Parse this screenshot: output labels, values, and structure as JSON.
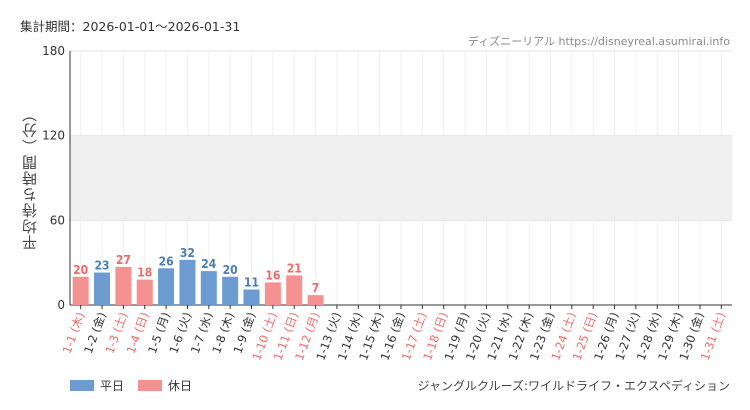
{
  "header": {
    "period_label": "集計期間：2026-01-01〜2026-01-31",
    "credit_site": "ディズニーリアル",
    "credit_url": "https://disneyreal.asumirai.info"
  },
  "legend": {
    "weekday_label": "平日",
    "holiday_label": "休日"
  },
  "footer": {
    "attraction_name": "ジャングルクルーズ:ワイルドライフ・エクスペディション"
  },
  "colors": {
    "weekday": "#6b9bd1",
    "holiday": "#f59191",
    "band": "#f0f0f0",
    "grid": "#e6e6e6",
    "weekday_text": "#4a7fb5",
    "holiday_text": "#ee6b6b",
    "axis": "#333333"
  },
  "chart_data": {
    "type": "bar",
    "ylabel": "平均待ち時間（分）",
    "ylim": [
      0,
      180
    ],
    "yticks": [
      0,
      60,
      120,
      180
    ],
    "shaded_band": [
      60,
      120
    ],
    "categories": [
      "1-1 (木)",
      "1-2 (金)",
      "1-3 (土)",
      "1-4 (日)",
      "1-5 (月)",
      "1-6 (火)",
      "1-7 (水)",
      "1-8 (木)",
      "1-9 (金)",
      "1-10 (土)",
      "1-11 (日)",
      "1-12 (月)",
      "1-13 (火)",
      "1-14 (水)",
      "1-15 (木)",
      "1-16 (金)",
      "1-17 (土)",
      "1-18 (日)",
      "1-19 (月)",
      "1-20 (火)",
      "1-21 (水)",
      "1-22 (木)",
      "1-23 (金)",
      "1-24 (土)",
      "1-25 (日)",
      "1-26 (月)",
      "1-27 (火)",
      "1-28 (水)",
      "1-29 (木)",
      "1-30 (金)",
      "1-31 (土)"
    ],
    "day_type": [
      "休日",
      "平日",
      "休日",
      "休日",
      "平日",
      "平日",
      "平日",
      "平日",
      "平日",
      "休日",
      "休日",
      "休日",
      "平日",
      "平日",
      "平日",
      "平日",
      "休日",
      "休日",
      "平日",
      "平日",
      "平日",
      "平日",
      "平日",
      "休日",
      "休日",
      "平日",
      "平日",
      "平日",
      "平日",
      "平日",
      "休日"
    ],
    "values": [
      20,
      23,
      27,
      18,
      26,
      32,
      24,
      20,
      11,
      16,
      21,
      7,
      null,
      null,
      null,
      null,
      null,
      null,
      null,
      null,
      null,
      null,
      null,
      null,
      null,
      null,
      null,
      null,
      null,
      null,
      null
    ]
  }
}
